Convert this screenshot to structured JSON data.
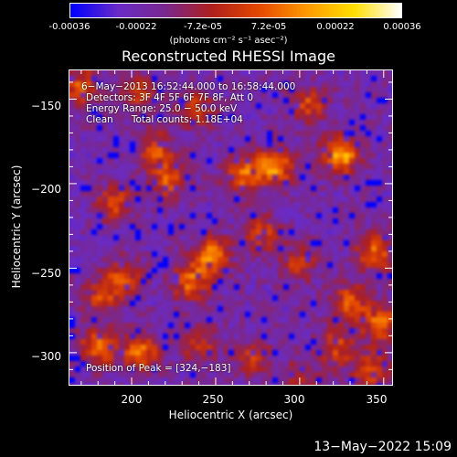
{
  "colorbar": {
    "tick_labels": [
      "-0.00036",
      "-0.00022",
      "-7.2e-05",
      "7.2e-05",
      "0.00022",
      "0.00036"
    ],
    "tick_values": [
      -0.00036,
      -0.00022,
      -7.2e-05,
      7.2e-05,
      0.00022,
      0.00036
    ],
    "range": [
      -0.00036,
      0.00036
    ],
    "units": "(photons cm⁻² s⁻¹ asec⁻²)",
    "colormap_stops": [
      "#0000ff",
      "#6a2cc8",
      "#7a2890",
      "#b0201c",
      "#e64a00",
      "#ff9a00",
      "#ffe000",
      "#ffffff"
    ]
  },
  "chart_data": {
    "type": "heatmap",
    "title": "Reconstructed RHESSI Image",
    "xlabel": "Heliocentric X (arcsec)",
    "ylabel": "Heliocentric Y (arcsec)",
    "xlim": [
      163,
      355
    ],
    "ylim": [
      -319,
      -133
    ],
    "x_ticks": [
      200,
      250,
      300,
      350
    ],
    "y_ticks": [
      -150,
      -200,
      -250,
      -300
    ],
    "x_tick_labels": [
      "200",
      "250",
      "300",
      "350"
    ],
    "y_tick_labels": [
      "−150",
      "−200",
      "−250",
      "−300"
    ],
    "annotations": [
      "6−May−2013 16:52:44.000 to 16:58:44.000",
      "Detectors: 3F 4F 5F 6F 7F 8F, Att 0",
      "Energy Range: 25.0 − 50.0 keV",
      "Clean      Total counts: 1.18E+04"
    ],
    "peak_label": "Position of Peak = [324,−183]",
    "peak_position": [
      324,
      -183
    ],
    "hot_spots": [
      {
        "x": 324,
        "y": -183,
        "v": 1.0
      },
      {
        "x": 285,
        "y": -190,
        "v": 0.9
      },
      {
        "x": 266,
        "y": -195,
        "v": 0.75
      },
      {
        "x": 248,
        "y": -243,
        "v": 0.8
      },
      {
        "x": 235,
        "y": -258,
        "v": 0.7
      },
      {
        "x": 222,
        "y": -198,
        "v": 0.6
      },
      {
        "x": 215,
        "y": -180,
        "v": 0.55
      },
      {
        "x": 190,
        "y": -212,
        "v": 0.55
      },
      {
        "x": 195,
        "y": -255,
        "v": 0.6
      },
      {
        "x": 182,
        "y": -267,
        "v": 0.5
      },
      {
        "x": 170,
        "y": -143,
        "v": 0.6
      },
      {
        "x": 205,
        "y": -147,
        "v": 0.55
      },
      {
        "x": 238,
        "y": -156,
        "v": 0.5
      },
      {
        "x": 305,
        "y": -153,
        "v": 0.55
      },
      {
        "x": 278,
        "y": -230,
        "v": 0.5
      },
      {
        "x": 300,
        "y": -247,
        "v": 0.45
      },
      {
        "x": 330,
        "y": -270,
        "v": 0.65
      },
      {
        "x": 348,
        "y": -283,
        "v": 0.7
      },
      {
        "x": 345,
        "y": -240,
        "v": 0.7
      },
      {
        "x": 322,
        "y": -297,
        "v": 0.55
      },
      {
        "x": 342,
        "y": -310,
        "v": 0.6
      },
      {
        "x": 180,
        "y": -297,
        "v": 0.7
      },
      {
        "x": 205,
        "y": -300,
        "v": 0.75
      },
      {
        "x": 240,
        "y": -295,
        "v": 0.45
      },
      {
        "x": 272,
        "y": -303,
        "v": 0.45
      },
      {
        "x": 300,
        "y": -315,
        "v": 0.4
      }
    ]
  },
  "footer": {
    "timestamp": "13−May−2022 15:09"
  }
}
